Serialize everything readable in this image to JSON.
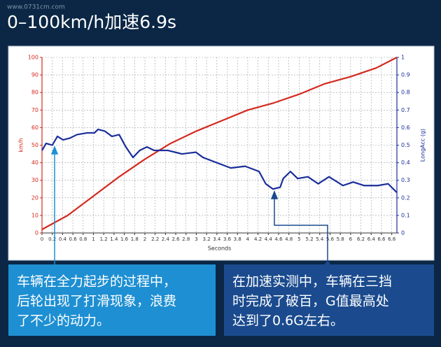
{
  "header": {
    "title": "0–100km/h加速6.9s",
    "watermark": "www.0731cm.com"
  },
  "chart_data": {
    "type": "line",
    "x_label": "Seconds",
    "y_label": "km/h",
    "y2_label": "LongAcc (g)",
    "xlim": [
      0,
      6.9
    ],
    "xticks": [
      0,
      0.2,
      0.4,
      0.6,
      0.8,
      1,
      1.2,
      1.4,
      1.6,
      1.8,
      2,
      2.2,
      2.4,
      2.6,
      2.8,
      3,
      3.2,
      3.4,
      3.6,
      3.8,
      4,
      4.2,
      4.4,
      4.6,
      4.8,
      5,
      5.2,
      5.4,
      5.6,
      5.8,
      6,
      6.2,
      6.4,
      6.6,
      6.8
    ],
    "ylim": [
      0,
      100
    ],
    "yticks": [
      0,
      10,
      20,
      30,
      40,
      50,
      60,
      70,
      80,
      90,
      100
    ],
    "y2lim": [
      0,
      1
    ],
    "y2ticks": [
      0,
      0.1,
      0.2,
      0.3,
      0.4,
      0.5,
      0.6,
      0.7,
      0.8,
      0.9,
      1
    ],
    "grid": true,
    "series": [
      {
        "name": "km/h",
        "color": "#d42a1e",
        "axis": "y",
        "x": [
          0,
          0.5,
          1,
          1.5,
          2,
          2.5,
          3,
          3.5,
          4,
          4.5,
          5,
          5.5,
          6,
          6.5,
          6.9
        ],
        "values": [
          2,
          10,
          21,
          32,
          42,
          51,
          58,
          64,
          70,
          74,
          79,
          85,
          89,
          94,
          100
        ]
      },
      {
        "name": "LongAcc (g)",
        "color": "#1a2e9a",
        "axis": "y2",
        "x": [
          0,
          0.08,
          0.2,
          0.3,
          0.41,
          0.54,
          0.68,
          0.88,
          1.02,
          1.09,
          1.22,
          1.36,
          1.5,
          1.63,
          1.77,
          1.9,
          2.04,
          2.18,
          2.45,
          2.72,
          2.99,
          3.13,
          3.4,
          3.67,
          3.95,
          4.22,
          4.35,
          4.49,
          4.63,
          4.69,
          4.83,
          4.97,
          5.17,
          5.37,
          5.58,
          5.85,
          6.05,
          6.26,
          6.53,
          6.73,
          6.9
        ],
        "values": [
          0.47,
          0.51,
          0.5,
          0.55,
          0.53,
          0.54,
          0.56,
          0.57,
          0.57,
          0.59,
          0.58,
          0.55,
          0.56,
          0.49,
          0.43,
          0.47,
          0.49,
          0.47,
          0.47,
          0.45,
          0.46,
          0.43,
          0.4,
          0.37,
          0.38,
          0.35,
          0.28,
          0.25,
          0.26,
          0.31,
          0.35,
          0.31,
          0.32,
          0.28,
          0.32,
          0.27,
          0.29,
          0.27,
          0.27,
          0.28,
          0.23
        ]
      }
    ]
  },
  "notes": [
    {
      "lines": [
        "车辆在全力起步的过程中，",
        "后轮出现了打滑现象，浪费",
        "了不少的动力。"
      ]
    },
    {
      "lines": [
        "在加速实测中，车辆在三挡",
        "时完成了破百，G值最高处",
        "达到了0.6G左右。"
      ]
    }
  ]
}
